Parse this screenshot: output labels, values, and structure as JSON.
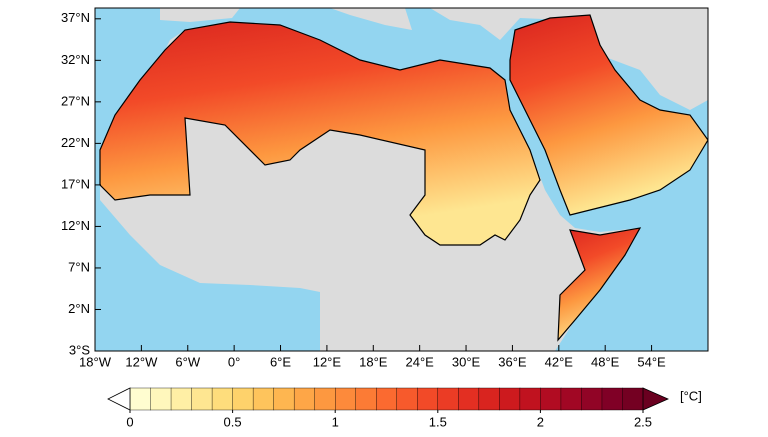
{
  "chart_data": {
    "type": "map",
    "xlim": [
      -18,
      61.3
    ],
    "ylim": [
      -3,
      38.3
    ],
    "xticks": [
      {
        "value": -18,
        "label": "18°W"
      },
      {
        "value": -12,
        "label": "12°W"
      },
      {
        "value": -6,
        "label": "6°W"
      },
      {
        "value": 0,
        "label": "0°"
      },
      {
        "value": 6,
        "label": "6°E"
      },
      {
        "value": 12,
        "label": "12°E"
      },
      {
        "value": 18,
        "label": "18°E"
      },
      {
        "value": 24,
        "label": "24°E"
      },
      {
        "value": 30,
        "label": "30°E"
      },
      {
        "value": 36,
        "label": "36°E"
      },
      {
        "value": 42,
        "label": "42°E"
      },
      {
        "value": 48,
        "label": "48°E"
      },
      {
        "value": 54,
        "label": "54°E"
      }
    ],
    "yticks": [
      {
        "value": -3,
        "label": "3°S"
      },
      {
        "value": 2,
        "label": "2°N"
      },
      {
        "value": 7,
        "label": "7°N"
      },
      {
        "value": 12,
        "label": "12°N"
      },
      {
        "value": 17,
        "label": "17°N"
      },
      {
        "value": 22,
        "label": "22°N"
      },
      {
        "value": 27,
        "label": "27°N"
      },
      {
        "value": 32,
        "label": "32°N"
      },
      {
        "value": 37,
        "label": "37°N"
      }
    ],
    "ocean_color": "#93d5f0",
    "land_color": "#dcdcdc",
    "colorbar": {
      "range": [
        0,
        2.5
      ],
      "ticks": [
        0,
        0.5,
        1,
        1.5,
        2,
        2.5
      ],
      "unit": "[°C]",
      "under_color": "#ffffff",
      "over_color": "#6a0020",
      "colors": [
        "#fffdd0",
        "#fff7bc",
        "#ffefa5",
        "#fee691",
        "#fedd7c",
        "#fed26b",
        "#fec45c",
        "#feb650",
        "#fea647",
        "#fd9840",
        "#fd8a3b",
        "#fc7b35",
        "#fb6a30",
        "#f75a2c",
        "#f24a28",
        "#eb3c25",
        "#e32f22",
        "#d9241f",
        "#cd1a1e",
        "#c0121f",
        "#b10c22",
        "#a10724",
        "#910426",
        "#800026",
        "#740022"
      ]
    }
  }
}
